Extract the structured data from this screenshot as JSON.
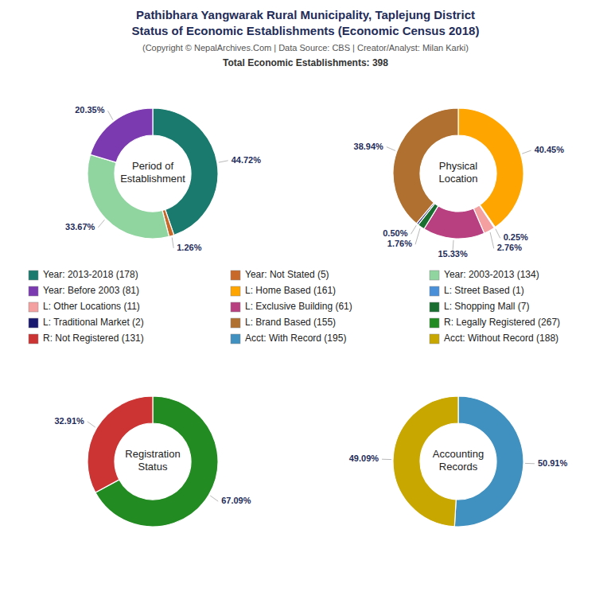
{
  "title": "Pathibhara Yangwarak Rural Municipality, Taplejung District\nStatus of Economic Establishments (Economic Census 2018)",
  "subtitle": "(Copyright © NepalArchives.Com | Data Source: CBS | Creator/Analyst: Milan Karki)",
  "annotations": [
    "Total Economic Establishments: 398"
  ],
  "chart_data": [
    {
      "type": "pie",
      "title": "Period of\nEstablishment",
      "categories": [
        "Year: 2013-2018 (178)",
        "Year: Not Stated (5)",
        "Year: 2003-2013 (134)",
        "Year: Before 2003 (81)"
      ],
      "values": [
        44.72,
        1.26,
        33.67,
        20.35
      ],
      "value_labels": [
        "44.72%",
        "1.26%",
        "33.67%",
        "20.35%"
      ],
      "colors": [
        "#1a7a6e",
        "#c8692a",
        "#90d4a0",
        "#7b3ab0"
      ],
      "data_labels": true
    },
    {
      "type": "pie",
      "title": "Physical\nLocation",
      "categories": [
        "L: Home Based (161)",
        "L: Street Based (1)",
        "L: Other Locations (11)",
        "L: Exclusive Building (61)",
        "L: Shopping Mall (7)",
        "L: Traditional Market (2)",
        "L: Brand Based (155)"
      ],
      "values": [
        40.45,
        0.25,
        2.76,
        15.33,
        1.76,
        0.5,
        38.94
      ],
      "value_labels": [
        "40.45%",
        "0.25%",
        "2.76%",
        "15.33%",
        "1.76%",
        "0.50%",
        "38.94%"
      ],
      "colors": [
        "#FFA500",
        "#4a90d9",
        "#f4a0a0",
        "#b84080",
        "#1a6e30",
        "#191970",
        "#b07030"
      ],
      "data_labels": true
    },
    {
      "type": "pie",
      "title": "Registration\nStatus",
      "categories": [
        "R: Legally Registered (267)",
        "R: Not Registered (131)"
      ],
      "values": [
        67.09,
        32.91
      ],
      "value_labels": [
        "67.09%",
        "32.91%"
      ],
      "colors": [
        "#228B22",
        "#CC3333"
      ],
      "data_labels": true
    },
    {
      "type": "pie",
      "title": "Accounting\nRecords",
      "categories": [
        "Acct: With Record (195)",
        "Acct: Without Record (188)"
      ],
      "values": [
        50.91,
        49.09
      ],
      "value_labels": [
        "50.91%",
        "49.09%"
      ],
      "colors": [
        "#4090C0",
        "#C8A800"
      ],
      "data_labels": true
    }
  ]
}
